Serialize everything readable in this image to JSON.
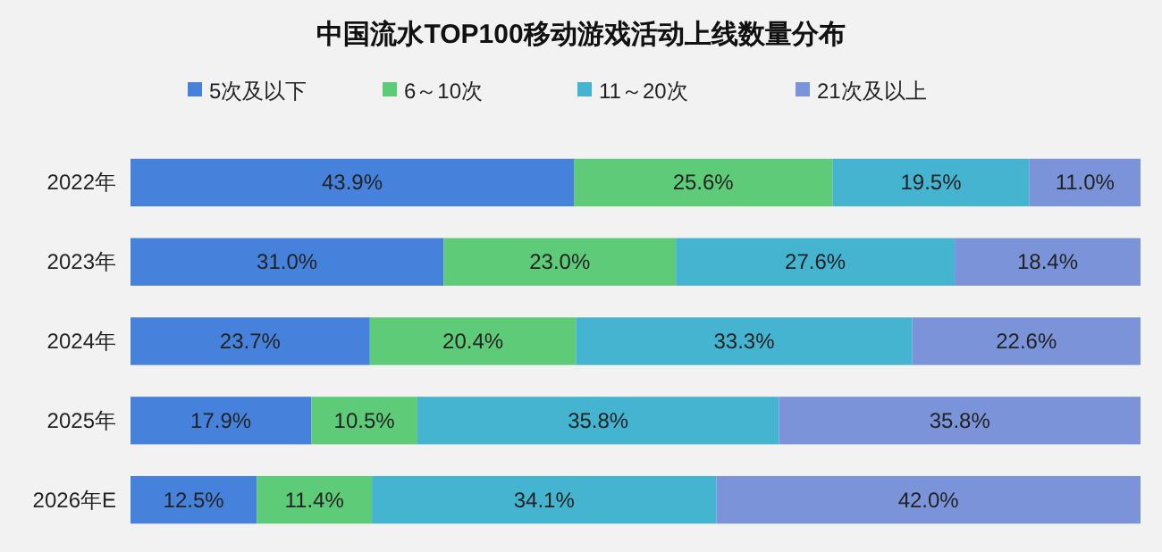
{
  "chart_data": {
    "type": "bar",
    "stacked": true,
    "orientation": "horizontal",
    "title": "中国流水TOP100移动游戏活动上线数量分布",
    "legend": "top",
    "categories": [
      "2022年",
      "2023年",
      "2024年",
      "2025年",
      "2026年E"
    ],
    "series": [
      {
        "name": "5次及以下",
        "color": "#4682dc",
        "values": [
          43.9,
          31.0,
          23.7,
          17.9,
          12.5
        ],
        "value_labels": [
          "43.9%",
          "31.0%",
          "23.7%",
          "17.9%",
          "12.5%"
        ]
      },
      {
        "name": "6～10次",
        "color": "#5ecb78",
        "values": [
          25.6,
          23.0,
          20.4,
          10.5,
          11.4
        ],
        "value_labels": [
          "25.6%",
          "23.0%",
          "20.4%",
          "10.5%",
          "11.4%"
        ]
      },
      {
        "name": "11～20次",
        "color": "#44b4d0",
        "values": [
          19.5,
          27.6,
          33.3,
          35.8,
          34.1
        ],
        "value_labels": [
          "19.5%",
          "27.6%",
          "33.3%",
          "35.8%",
          "34.1%"
        ]
      },
      {
        "name": "21次及以上",
        "color": "#7b93d9",
        "values": [
          11.0,
          18.4,
          22.6,
          35.8,
          42.0
        ],
        "value_labels": [
          "11.0%",
          "18.4%",
          "22.6%",
          "35.8%",
          "42.0%"
        ]
      }
    ]
  }
}
